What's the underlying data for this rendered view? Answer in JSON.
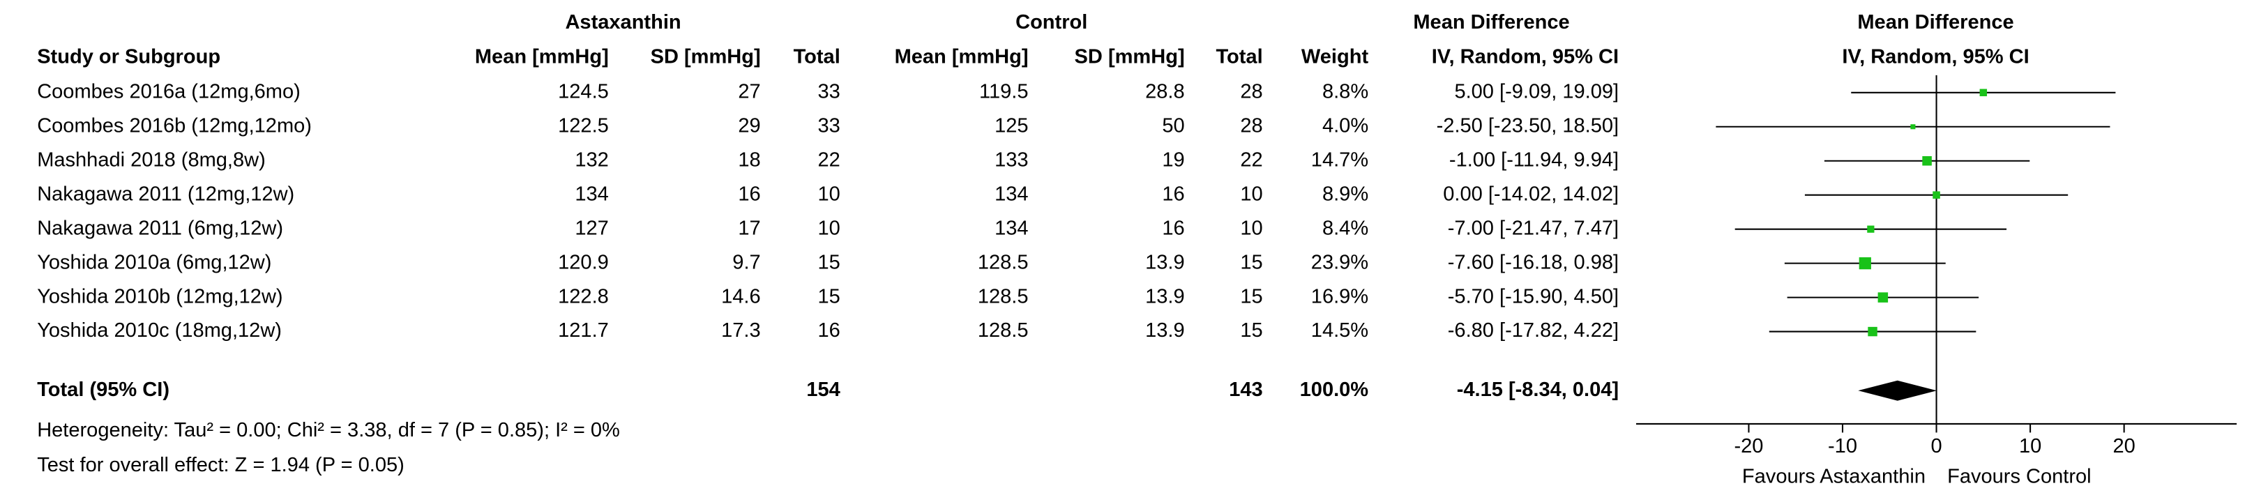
{
  "chart_data": {
    "type": "forest",
    "header": {
      "group1": "Astaxanthin",
      "group2": "Control",
      "effect_header": "Mean Difference",
      "plot_header": "Mean Difference",
      "columns": [
        "Study or Subgroup",
        "Mean [mmHg]",
        "SD [mmHg]",
        "Total",
        "Mean [mmHg]",
        "SD [mmHg]",
        "Total",
        "Weight",
        "IV, Random, 95% CI"
      ],
      "plot_subheader": "IV, Random, 95% CI"
    },
    "studies": {
      "names": [
        "Coombes 2016a (12mg,6mo)",
        "Coombes 2016b (12mg,12mo)",
        "Mashhadi 2018 (8mg,8w)",
        "Nakagawa 2011 (12mg,12w)",
        "Nakagawa 2011 (6mg,12w)",
        "Yoshida 2010a (6mg,12w)",
        "Yoshida 2010b (12mg,12w)",
        "Yoshida 2010c (18mg,12w)"
      ],
      "mean1": [
        124.5,
        122.5,
        132,
        134,
        127,
        120.9,
        122.8,
        121.7
      ],
      "sd1": [
        27,
        29,
        18,
        16,
        17,
        9.7,
        14.6,
        17.3
      ],
      "n1": [
        33,
        33,
        22,
        10,
        10,
        15,
        15,
        16
      ],
      "mean2": [
        119.5,
        125,
        133,
        134,
        134,
        128.5,
        128.5,
        128.5
      ],
      "sd2": [
        28.8,
        50,
        19,
        16,
        16,
        13.9,
        13.9,
        13.9
      ],
      "n2": [
        28,
        28,
        22,
        10,
        10,
        15,
        15,
        15
      ],
      "weights": [
        8.8,
        4.0,
        14.7,
        8.9,
        8.4,
        23.9,
        16.9,
        14.5
      ],
      "weight_labels": [
        "8.8%",
        "4.0%",
        "14.7%",
        "8.9%",
        "8.4%",
        "23.9%",
        "16.9%",
        "14.5%"
      ],
      "md": [
        5.0,
        -2.5,
        -1.0,
        0.0,
        -7.0,
        -7.6,
        -5.7,
        -6.8
      ],
      "ci_lower": [
        -9.09,
        -23.5,
        -11.94,
        -14.02,
        -21.47,
        -16.18,
        -15.9,
        -17.82
      ],
      "ci_upper": [
        19.09,
        18.5,
        9.94,
        14.02,
        7.47,
        0.98,
        4.5,
        4.22
      ],
      "ci_labels": [
        "5.00 [-9.09, 19.09]",
        "-2.50 [-23.50, 18.50]",
        "-1.00 [-11.94, 9.94]",
        "0.00 [-14.02, 14.02]",
        "-7.00 [-21.47, 7.47]",
        "-7.60 [-16.18, 0.98]",
        "-5.70 [-15.90, 4.50]",
        "-6.80 [-17.82, 4.22]"
      ]
    },
    "total": {
      "label": "Total (95% CI)",
      "n1": 154,
      "n2": 143,
      "weight": 100.0,
      "weight_label": "100.0%",
      "md": -4.15,
      "ci_lower": -8.34,
      "ci_upper": 0.04,
      "ci_label": "-4.15 [-8.34, 0.04]"
    },
    "heterogeneity": "Heterogeneity: Tau² = 0.00; Chi² = 3.38, df = 7 (P = 0.85); I² = 0%",
    "overall_effect": "Test for overall effect: Z = 1.94 (P = 0.05)",
    "xlim": [
      -32,
      32
    ],
    "xticks": [
      -20,
      -10,
      0,
      10,
      20
    ],
    "favours_left": "Favours Astaxanthin",
    "favours_right": "Favours Control",
    "color": "#19c219"
  }
}
